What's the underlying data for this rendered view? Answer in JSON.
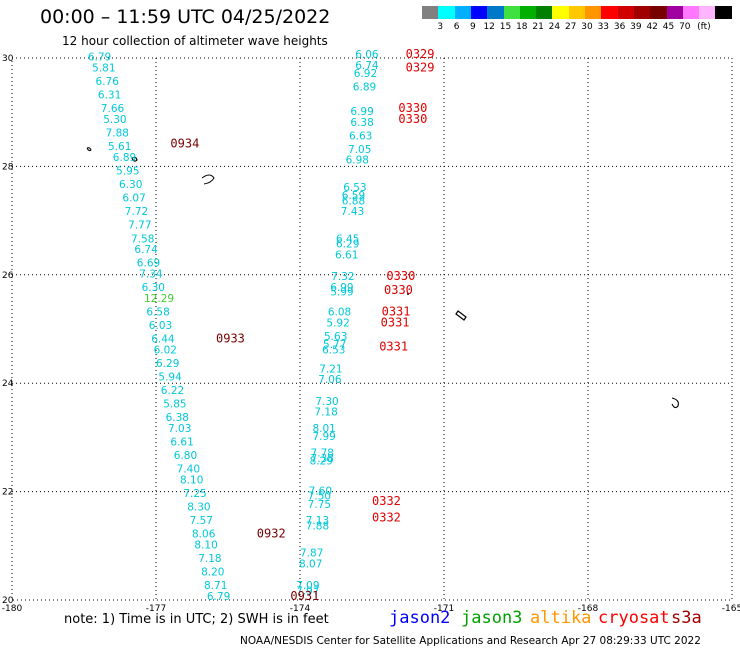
{
  "title": "00:00 – 11:59 UTC 04/25/2022",
  "subtitle": "12 hour collection of altimeter wave heights",
  "legend": {
    "colors": [
      "#808080",
      "#00ffff",
      "#00b0ff",
      "#0000ff",
      "#0078c8",
      "#40e040",
      "#00b000",
      "#008000",
      "#ffff00",
      "#ffc800",
      "#ff9600",
      "#ff0000",
      "#d00000",
      "#a00000",
      "#780000",
      "#a000a0",
      "#ff78ff",
      "#ffb4ff",
      "#000000"
    ],
    "labels": [
      "3",
      "6",
      "9",
      "12",
      "15",
      "18",
      "21",
      "24",
      "27",
      "30",
      "33",
      "36",
      "39",
      "42",
      "45",
      "70"
    ],
    "unit": "(ft)"
  },
  "axes": {
    "x_ticks": [
      "-180",
      "-177",
      "-174",
      "-171",
      "-168",
      "-165"
    ],
    "y_ticks": [
      "30",
      "28",
      "26",
      "24",
      "22",
      "20"
    ],
    "lon_range": [
      -180,
      -165
    ],
    "lat_range": [
      20,
      30
    ]
  },
  "swh_readings": [
    {
      "v": "6.79",
      "lon": -178.42,
      "lat": 29.95
    },
    {
      "v": "5.81",
      "lon": -178.33,
      "lat": 29.75
    },
    {
      "v": "6.76",
      "lon": -178.26,
      "lat": 29.5
    },
    {
      "v": "6.31",
      "lon": -178.21,
      "lat": 29.25
    },
    {
      "v": "7.66",
      "lon": -178.15,
      "lat": 29.0
    },
    {
      "v": "5.30",
      "lon": -178.1,
      "lat": 28.8
    },
    {
      "v": "7.88",
      "lon": -178.05,
      "lat": 28.55
    },
    {
      "v": "5.61",
      "lon": -178.0,
      "lat": 28.3
    },
    {
      "v": "6.89",
      "lon": -177.9,
      "lat": 28.1
    },
    {
      "v": "5.95",
      "lon": -177.83,
      "lat": 27.85
    },
    {
      "v": "6.30",
      "lon": -177.77,
      "lat": 27.6
    },
    {
      "v": "6.07",
      "lon": -177.7,
      "lat": 27.35
    },
    {
      "v": "7.72",
      "lon": -177.65,
      "lat": 27.1
    },
    {
      "v": "7.77",
      "lon": -177.58,
      "lat": 26.85
    },
    {
      "v": "7.58",
      "lon": -177.52,
      "lat": 26.6
    },
    {
      "v": "6.74",
      "lon": -177.45,
      "lat": 26.4
    },
    {
      "v": "6.69",
      "lon": -177.4,
      "lat": 26.15
    },
    {
      "v": "7.34",
      "lon": -177.35,
      "lat": 25.95
    },
    {
      "v": "6.30",
      "lon": -177.3,
      "lat": 25.7
    },
    {
      "v": "6.58",
      "lon": -177.2,
      "lat": 25.25
    },
    {
      "v": "6.03",
      "lon": -177.15,
      "lat": 25.0
    },
    {
      "v": "6.44",
      "lon": -177.1,
      "lat": 24.75
    },
    {
      "v": "6.02",
      "lon": -177.05,
      "lat": 24.55
    },
    {
      "v": "6.29",
      "lon": -177.0,
      "lat": 24.3
    },
    {
      "v": "5.94",
      "lon": -176.95,
      "lat": 24.05
    },
    {
      "v": "6.22",
      "lon": -176.9,
      "lat": 23.8
    },
    {
      "v": "5.85",
      "lon": -176.85,
      "lat": 23.55
    },
    {
      "v": "6.38",
      "lon": -176.8,
      "lat": 23.3
    },
    {
      "v": "7.03",
      "lon": -176.75,
      "lat": 23.1
    },
    {
      "v": "6.61",
      "lon": -176.7,
      "lat": 22.85
    },
    {
      "v": "6.80",
      "lon": -176.63,
      "lat": 22.6
    },
    {
      "v": "7.40",
      "lon": -176.57,
      "lat": 22.35
    },
    {
      "v": "8.10",
      "lon": -176.5,
      "lat": 22.15
    },
    {
      "v": "7.25",
      "lon": -176.43,
      "lat": 21.9
    },
    {
      "v": "8.30",
      "lon": -176.35,
      "lat": 21.65
    },
    {
      "v": "7.57",
      "lon": -176.3,
      "lat": 21.4
    },
    {
      "v": "8.06",
      "lon": -176.25,
      "lat": 21.15
    },
    {
      "v": "8.10",
      "lon": -176.2,
      "lat": 20.95
    },
    {
      "v": "7.18",
      "lon": -176.12,
      "lat": 20.7
    },
    {
      "v": "8.20",
      "lon": -176.06,
      "lat": 20.45
    },
    {
      "v": "8.71",
      "lon": -176.0,
      "lat": 20.2
    },
    {
      "v": "6.79",
      "lon": -175.94,
      "lat": 20.0
    },
    {
      "v": "6.06",
      "lon": -172.85,
      "lat": 30.0
    },
    {
      "v": "6.74",
      "lon": -172.85,
      "lat": 29.8
    },
    {
      "v": "6.92",
      "lon": -172.88,
      "lat": 29.65
    },
    {
      "v": "6.89",
      "lon": -172.9,
      "lat": 29.4
    },
    {
      "v": "6.99",
      "lon": -172.95,
      "lat": 28.95
    },
    {
      "v": "6.38",
      "lon": -172.95,
      "lat": 28.75
    },
    {
      "v": "6.63",
      "lon": -172.98,
      "lat": 28.5
    },
    {
      "v": "7.05",
      "lon": -173.0,
      "lat": 28.25
    },
    {
      "v": "6.98",
      "lon": -173.05,
      "lat": 28.05
    },
    {
      "v": "6.53",
      "lon": -173.1,
      "lat": 27.55
    },
    {
      "v": "6.59",
      "lon": -173.13,
      "lat": 27.4
    },
    {
      "v": "6.88",
      "lon": -173.13,
      "lat": 27.3
    },
    {
      "v": "7.43",
      "lon": -173.15,
      "lat": 27.1
    },
    {
      "v": "6.45",
      "lon": -173.25,
      "lat": 26.6
    },
    {
      "v": "6.29",
      "lon": -173.25,
      "lat": 26.5
    },
    {
      "v": "6.61",
      "lon": -173.27,
      "lat": 26.3
    },
    {
      "v": "7.32",
      "lon": -173.35,
      "lat": 25.9
    },
    {
      "v": "6.99",
      "lon": -173.37,
      "lat": 25.7
    },
    {
      "v": "5.99",
      "lon": -173.37,
      "lat": 25.62
    },
    {
      "v": "6.08",
      "lon": -173.42,
      "lat": 25.25
    },
    {
      "v": "5.92",
      "lon": -173.45,
      "lat": 25.05
    },
    {
      "v": "5.63",
      "lon": -173.5,
      "lat": 24.8
    },
    {
      "v": "5.77",
      "lon": -173.52,
      "lat": 24.65
    },
    {
      "v": "6.53",
      "lon": -173.54,
      "lat": 24.55
    },
    {
      "v": "7.21",
      "lon": -173.6,
      "lat": 24.2
    },
    {
      "v": "7.06",
      "lon": -173.62,
      "lat": 24.0
    },
    {
      "v": "7.30",
      "lon": -173.68,
      "lat": 23.6
    },
    {
      "v": "7.18",
      "lon": -173.7,
      "lat": 23.4
    },
    {
      "v": "8.01",
      "lon": -173.74,
      "lat": 23.1
    },
    {
      "v": "7.99",
      "lon": -173.74,
      "lat": 22.95
    },
    {
      "v": "7.78",
      "lon": -173.78,
      "lat": 22.65
    },
    {
      "v": "7.38",
      "lon": -173.78,
      "lat": 22.55
    },
    {
      "v": "8.29",
      "lon": -173.8,
      "lat": 22.5
    },
    {
      "v": "7.60",
      "lon": -173.82,
      "lat": 21.95
    },
    {
      "v": "7.50",
      "lon": -173.84,
      "lat": 21.85
    },
    {
      "v": "7.75",
      "lon": -173.84,
      "lat": 21.7
    },
    {
      "v": "7.13",
      "lon": -173.88,
      "lat": 21.4
    },
    {
      "v": "7.88",
      "lon": -173.88,
      "lat": 21.3
    },
    {
      "v": "7.87",
      "lon": -174.0,
      "lat": 20.8
    },
    {
      "v": "8.07",
      "lon": -174.02,
      "lat": 20.6
    },
    {
      "v": "7.09",
      "lon": -174.08,
      "lat": 20.2
    },
    {
      "v": "7.97",
      "lon": -174.08,
      "lat": 20.1
    }
  ],
  "swh_highlight": [
    {
      "v": "12.29",
      "lon": -177.25,
      "lat": 25.5
    }
  ],
  "time_labels": [
    {
      "t": "0934",
      "lon": -176.7,
      "lat": 28.35,
      "color": "#780000"
    },
    {
      "t": "0933",
      "lon": -175.75,
      "lat": 24.75,
      "color": "#780000"
    },
    {
      "t": "0932",
      "lon": -174.9,
      "lat": 21.15,
      "color": "#780000"
    },
    {
      "t": "0931",
      "lon": -174.2,
      "lat": 20.0,
      "color": "#780000"
    },
    {
      "t": "0329",
      "lon": -171.8,
      "lat": 30.0,
      "color": "#e00000"
    },
    {
      "t": "0329",
      "lon": -171.8,
      "lat": 29.75,
      "color": "#e00000"
    },
    {
      "t": "0330",
      "lon": -171.95,
      "lat": 29.0,
      "color": "#e00000"
    },
    {
      "t": "0330",
      "lon": -171.95,
      "lat": 28.8,
      "color": "#e00000"
    },
    {
      "t": "0330",
      "lon": -172.2,
      "lat": 25.9,
      "color": "#e00000"
    },
    {
      "t": "0330",
      "lon": -172.25,
      "lat": 25.65,
      "color": "#e00000"
    },
    {
      "t": "0331",
      "lon": -172.3,
      "lat": 25.25,
      "color": "#e00000"
    },
    {
      "t": "0331",
      "lon": -172.32,
      "lat": 25.05,
      "color": "#e00000"
    },
    {
      "t": "0331",
      "lon": -172.35,
      "lat": 24.6,
      "color": "#e00000"
    },
    {
      "t": "0332",
      "lon": -172.5,
      "lat": 21.75,
      "color": "#e00000"
    },
    {
      "t": "0332",
      "lon": -172.5,
      "lat": 21.45,
      "color": "#e00000"
    }
  ],
  "note": "note: 1) Time is in UTC; 2) SWH is in feet",
  "satellites": [
    {
      "name": "jason2",
      "color": "#0000ff"
    },
    {
      "name": "jason3",
      "color": "#00a000"
    },
    {
      "name": "altika",
      "color": "#ff9600"
    },
    {
      "name": "cryosat",
      "color": "#ff0000"
    },
    {
      "name": "s3a",
      "color": "#a00000"
    }
  ],
  "credit": "NOAA/NESDIS Center for Satellite Applications and Research   Apr 27 08:29:33 UTC 2022"
}
